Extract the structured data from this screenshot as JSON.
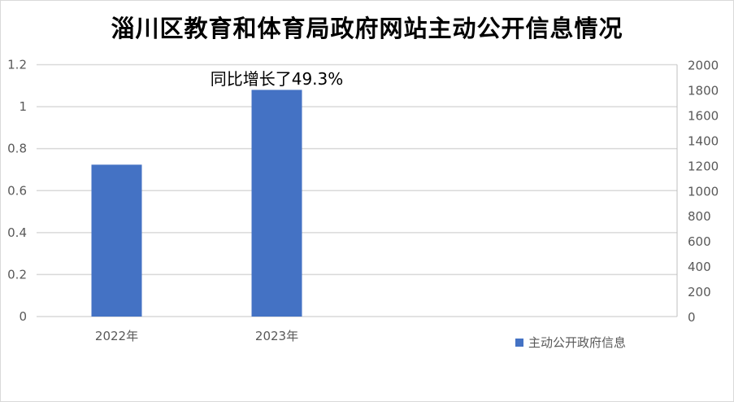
{
  "chart_data": {
    "type": "bar",
    "title": "淄川区教育和体育局政府网站主动公开信息情况",
    "categories": [
      "2022年",
      "2023年"
    ],
    "series": [
      {
        "name": "主动公开政府信息",
        "values": [
          1206,
          1800
        ],
        "color": "#4472c4",
        "axis": "right"
      }
    ],
    "y_left": {
      "ylim": [
        0,
        1.2
      ],
      "ticks": [
        "0",
        "0.2",
        "0.4",
        "0.6",
        "0.8",
        "1",
        "1.2"
      ]
    },
    "y_right": {
      "ylim": [
        0,
        2000
      ],
      "ticks": [
        "0",
        "200",
        "400",
        "600",
        "800",
        "1000",
        "1200",
        "1400",
        "1600",
        "1800",
        "2000"
      ]
    },
    "annotation": "同比增长了49.3%",
    "grid": true,
    "legend_position": "bottom-right"
  }
}
